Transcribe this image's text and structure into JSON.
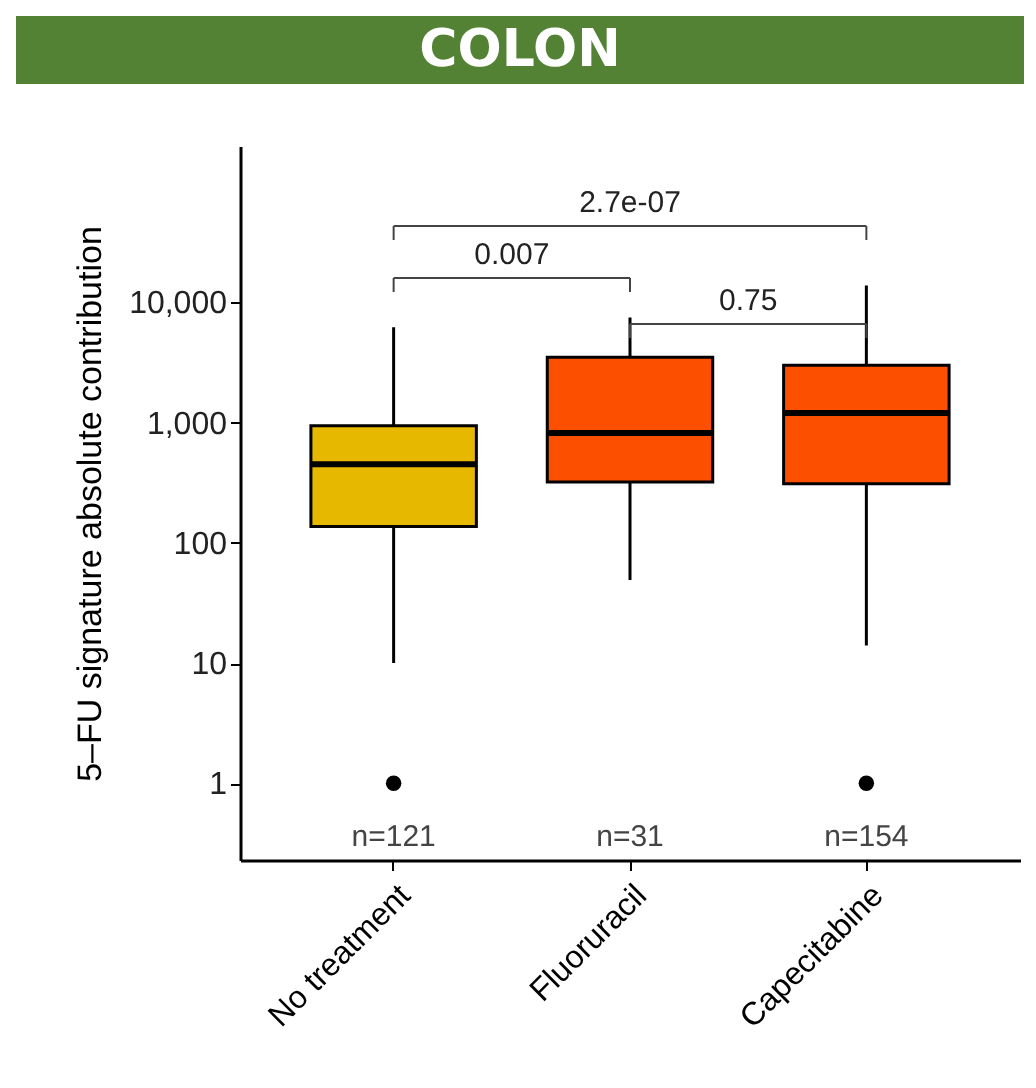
{
  "chart_data": {
    "type": "box",
    "title": "COLON",
    "ylabel": "5–FU signature absolute contribution",
    "categories": [
      "No treatment",
      "Fluoruracil",
      "Capecitabine"
    ],
    "colors": [
      "#e6b800",
      "#fc5000",
      "#fc5000"
    ],
    "boxes": [
      {
        "low": 10,
        "q1": 137,
        "median": 450,
        "q3": 940,
        "high": 6200,
        "outliers": [
          1
        ]
      },
      {
        "low": 49,
        "q1": 320,
        "median": 820,
        "q3": 3500,
        "high": 7500
      },
      {
        "low": 14,
        "q1": 310,
        "median": 1200,
        "q3": 3000,
        "high": 13800,
        "outliers": [
          1
        ]
      }
    ],
    "log": true,
    "ylim": [
      0.23,
      200000
    ],
    "yticks": [
      1,
      10,
      100,
      {
        "value": 1000,
        "label": "1,000"
      },
      {
        "value": 10000,
        "label": "10,000"
      }
    ],
    "grid": false,
    "annotations": [
      "2.7e-07",
      "0.007",
      "0.75",
      "n=121",
      "n=31",
      "n=154"
    ]
  }
}
